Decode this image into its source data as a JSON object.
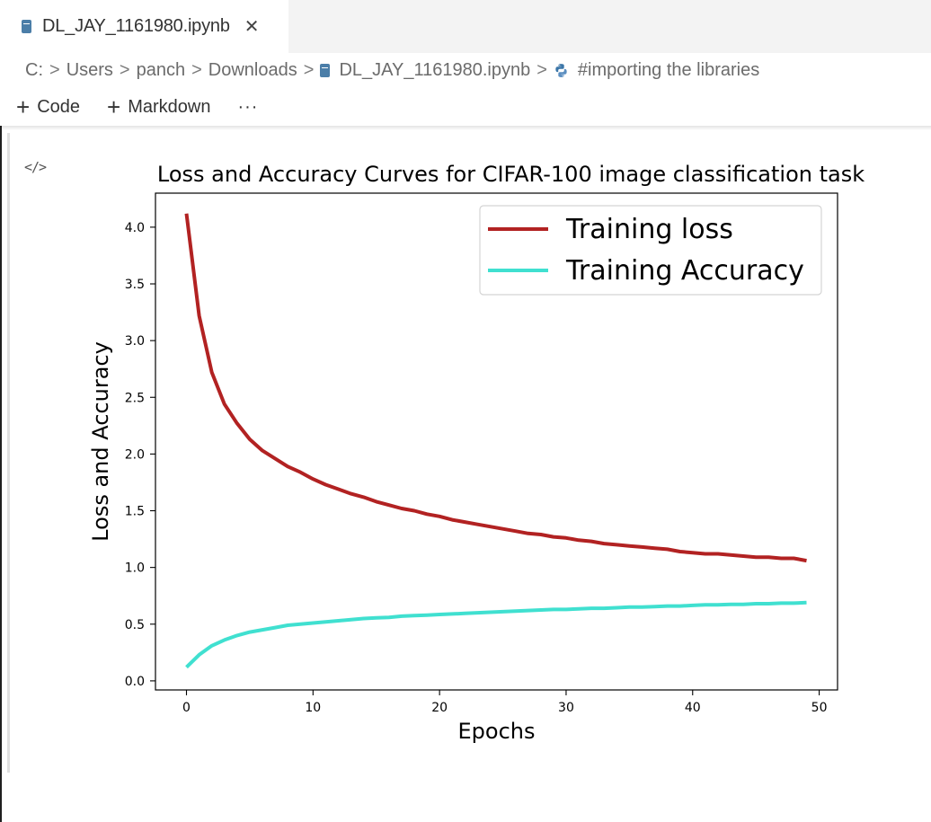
{
  "tab": {
    "icon": "notebook-icon",
    "title": "DL_JAY_1161980.ipynb",
    "close_icon": "close-icon",
    "close_label": "✕"
  },
  "breadcrumb": {
    "items": [
      "C:",
      "Users",
      "panch",
      "Downloads",
      "DL_JAY_1161980.ipynb",
      "#importing the libraries"
    ],
    "separator": ">",
    "notebook_icon": "notebook-icon",
    "python_icon": "python-icon"
  },
  "toolbar": {
    "code_label": "Code",
    "markdown_label": "Markdown",
    "plus_icon": "plus-icon",
    "more_label": "···"
  },
  "cell": {
    "code_toggle_icon": "code-toggle-icon",
    "code_toggle_label": "</>"
  },
  "chart_data": {
    "type": "line",
    "title": "Loss and Accuracy Curves for CIFAR-100 image classification task",
    "xlabel": "Epochs",
    "ylabel": "Loss and Accuracy",
    "xlim": [
      -2.45,
      51.45
    ],
    "ylim": [
      -0.08,
      4.3
    ],
    "xticks": [
      0,
      10,
      20,
      30,
      40,
      50
    ],
    "yticks": [
      0.0,
      0.5,
      1.0,
      1.5,
      2.0,
      2.5,
      3.0,
      3.5,
      4.0
    ],
    "xtick_labels": [
      "0",
      "10",
      "20",
      "30",
      "40",
      "50"
    ],
    "ytick_labels": [
      "0.0",
      "0.5",
      "1.0",
      "1.5",
      "2.0",
      "2.5",
      "3.0",
      "3.5",
      "4.0"
    ],
    "grid": false,
    "legend_position": "top-right",
    "x": [
      0,
      1,
      2,
      3,
      4,
      5,
      6,
      7,
      8,
      9,
      10,
      11,
      12,
      13,
      14,
      15,
      16,
      17,
      18,
      19,
      20,
      21,
      22,
      23,
      24,
      25,
      26,
      27,
      28,
      29,
      30,
      31,
      32,
      33,
      34,
      35,
      36,
      37,
      38,
      39,
      40,
      41,
      42,
      43,
      44,
      45,
      46,
      47,
      48,
      49
    ],
    "series": [
      {
        "name": "Training loss",
        "color": "#b22222",
        "values": [
          4.12,
          3.22,
          2.72,
          2.44,
          2.27,
          2.13,
          2.03,
          1.96,
          1.89,
          1.84,
          1.78,
          1.73,
          1.69,
          1.65,
          1.62,
          1.58,
          1.55,
          1.52,
          1.5,
          1.47,
          1.45,
          1.42,
          1.4,
          1.38,
          1.36,
          1.34,
          1.32,
          1.3,
          1.29,
          1.27,
          1.26,
          1.24,
          1.23,
          1.21,
          1.2,
          1.19,
          1.18,
          1.17,
          1.16,
          1.14,
          1.13,
          1.12,
          1.12,
          1.11,
          1.1,
          1.09,
          1.09,
          1.08,
          1.08,
          1.06
        ]
      },
      {
        "name": "Training Accuracy",
        "color": "#40e0d0",
        "values": [
          0.12,
          0.23,
          0.31,
          0.36,
          0.4,
          0.43,
          0.45,
          0.47,
          0.49,
          0.5,
          0.51,
          0.52,
          0.53,
          0.54,
          0.55,
          0.555,
          0.56,
          0.57,
          0.575,
          0.58,
          0.585,
          0.59,
          0.595,
          0.6,
          0.605,
          0.61,
          0.615,
          0.62,
          0.625,
          0.63,
          0.63,
          0.635,
          0.64,
          0.64,
          0.645,
          0.65,
          0.65,
          0.655,
          0.66,
          0.66,
          0.665,
          0.67,
          0.67,
          0.675,
          0.675,
          0.68,
          0.68,
          0.685,
          0.685,
          0.69
        ]
      }
    ]
  }
}
